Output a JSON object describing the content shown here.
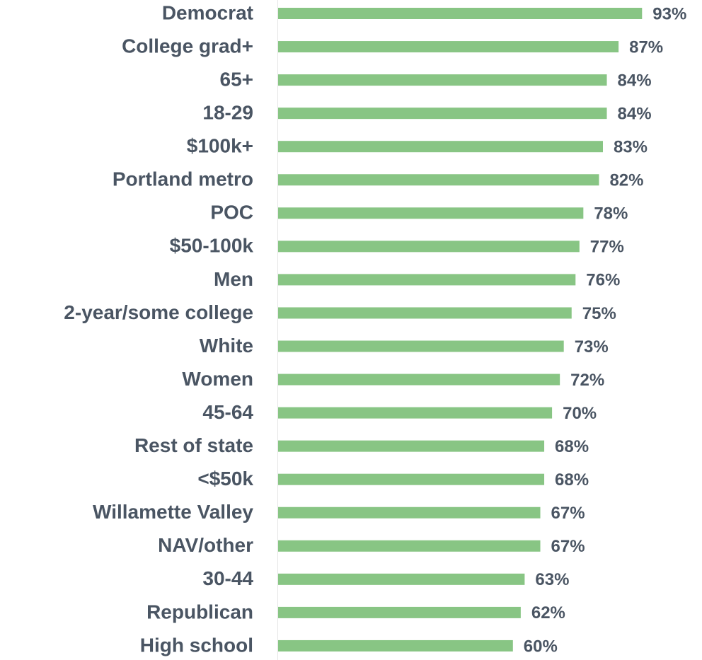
{
  "chart_data": {
    "type": "bar",
    "orientation": "horizontal",
    "categories": [
      "Democrat",
      "College grad+",
      "65+",
      "18-29",
      "$100k+",
      "Portland metro",
      "POC",
      "$50-100k",
      "Men",
      "2-year/some college",
      "White",
      "Women",
      "45-64",
      "Rest of state",
      "<$50k",
      "Willamette Valley",
      "NAV/other",
      "30-44",
      "Republican",
      "High school"
    ],
    "values": [
      93,
      87,
      84,
      84,
      83,
      82,
      78,
      77,
      76,
      75,
      73,
      72,
      70,
      68,
      68,
      67,
      67,
      63,
      62,
      60
    ],
    "value_labels": [
      "93%",
      "87%",
      "84%",
      "84%",
      "83%",
      "82%",
      "78%",
      "77%",
      "76%",
      "75%",
      "73%",
      "72%",
      "70%",
      "68%",
      "68%",
      "67%",
      "67%",
      "63%",
      "62%",
      "60%"
    ],
    "color": "#88c584",
    "xlim": [
      0,
      100
    ]
  }
}
